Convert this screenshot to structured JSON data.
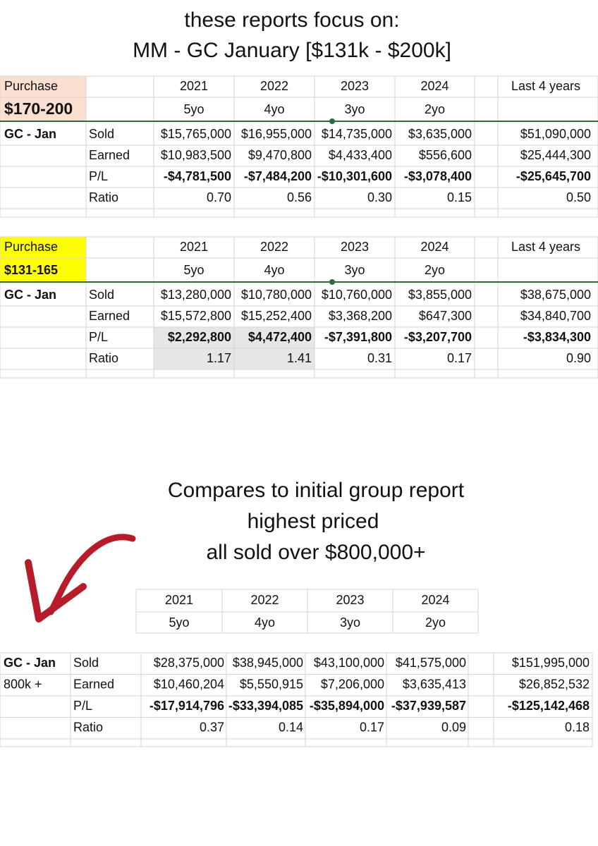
{
  "title": [
    "these reports focus on:",
    "MM - GC January  [$131k - $200k]"
  ],
  "tables": [
    {
      "purchase": "Purchase",
      "range": "$170-200",
      "years": [
        "2021",
        "2022",
        "2023",
        "2024"
      ],
      "total_label": "Last 4 years",
      "ages": [
        "5yo",
        "4yo",
        "3yo",
        "2yo"
      ],
      "group": "GC - Jan",
      "rows": [
        {
          "label": "Sold",
          "values": [
            "$15,765,000",
            "$16,955,000",
            "$14,735,000",
            "$3,635,000"
          ],
          "total": "$51,090,000"
        },
        {
          "label": "Earned",
          "values": [
            "$10,983,500",
            "$9,470,800",
            "$4,433,400",
            "$556,600"
          ],
          "total": "$25,444,300"
        },
        {
          "label": "P/L",
          "values": [
            "-$4,781,500",
            "-$7,484,200",
            "-$10,301,600",
            "-$3,078,400"
          ],
          "total": "-$25,645,700"
        },
        {
          "label": "Ratio",
          "values": [
            "0.70",
            "0.56",
            "0.30",
            "0.15"
          ],
          "total": "0.50"
        }
      ]
    },
    {
      "purchase": "Purchase",
      "range": "$131-165",
      "years": [
        "2021",
        "2022",
        "2023",
        "2024"
      ],
      "total_label": "Last 4 years",
      "ages": [
        "5yo",
        "4yo",
        "3yo",
        "2yo"
      ],
      "group": "GC - Jan",
      "rows": [
        {
          "label": "Sold",
          "values": [
            "$13,280,000",
            "$10,780,000",
            "$10,760,000",
            "$3,855,000"
          ],
          "total": "$38,675,000"
        },
        {
          "label": "Earned",
          "values": [
            "$15,572,800",
            "$15,252,400",
            "$3,368,200",
            "$647,300"
          ],
          "total": "$34,840,700"
        },
        {
          "label": "P/L",
          "values": [
            "$2,292,800",
            "$4,472,400",
            "-$7,391,800",
            "-$3,207,700"
          ],
          "total": "-$3,834,300"
        },
        {
          "label": "Ratio",
          "values": [
            "1.17",
            "1.41",
            "0.31",
            "0.17"
          ],
          "total": "0.90"
        }
      ]
    }
  ],
  "compare_text": [
    "Compares to initial group report",
    "highest priced",
    "all sold over $800,000+"
  ],
  "top_group": {
    "years": [
      "2021",
      "2022",
      "2023",
      "2024"
    ],
    "ages": [
      "5yo",
      "4yo",
      "3yo",
      "2yo"
    ],
    "group": "GC - Jan",
    "subgroup": "800k +",
    "rows": [
      {
        "label": "Sold",
        "values": [
          "$28,375,000",
          "$38,945,000",
          "$43,100,000",
          "$41,575,000"
        ],
        "total": "$151,995,000"
      },
      {
        "label": "Earned",
        "values": [
          "$10,460,204",
          "$5,550,915",
          "$7,206,000",
          "$3,635,413"
        ],
        "total": "$26,852,532"
      },
      {
        "label": "P/L",
        "values": [
          "-$17,914,796",
          "-$33,394,085",
          "-$35,894,000",
          "-$37,939,587"
        ],
        "total": "-$125,142,468"
      },
      {
        "label": "Ratio",
        "values": [
          "0.37",
          "0.14",
          "0.17",
          "0.09"
        ],
        "total": "0.18"
      }
    ]
  }
}
